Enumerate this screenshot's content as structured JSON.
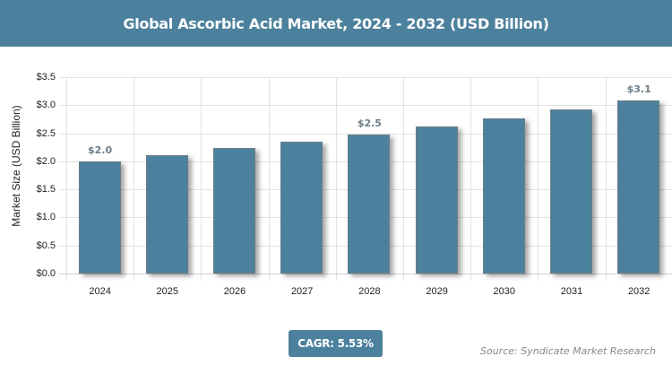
{
  "header": {
    "title": "Global Ascorbic Acid Market, 2024 - 2032 (USD Billion)"
  },
  "chart_data": {
    "type": "bar",
    "title": "Global Ascorbic Acid Market, 2024 - 2032 (USD Billion)",
    "xlabel": "",
    "ylabel": "Market Size (USD Billion)",
    "categories": [
      "2024",
      "2025",
      "2026",
      "2027",
      "2028",
      "2029",
      "2030",
      "2031",
      "2032"
    ],
    "values": [
      2.0,
      2.11,
      2.23,
      2.35,
      2.48,
      2.62,
      2.76,
      2.92,
      3.08
    ],
    "data_labels": {
      "0": "$2.0",
      "4": "$2.5",
      "8": "$3.1"
    },
    "yticks": [
      "$0.0",
      "$0.5",
      "$1.0",
      "$1.5",
      "$2.0",
      "$2.5",
      "$3.0",
      "$3.5"
    ],
    "ylim": [
      0,
      3.5
    ],
    "grid": true,
    "legend": "none",
    "bar_color": "#4c819d"
  },
  "footer": {
    "cagr_label": "CAGR: 5.53%",
    "source": "Source: Syndicate Market Research"
  },
  "colors": {
    "brand": "#4c819d",
    "label": "#6b7d88"
  }
}
